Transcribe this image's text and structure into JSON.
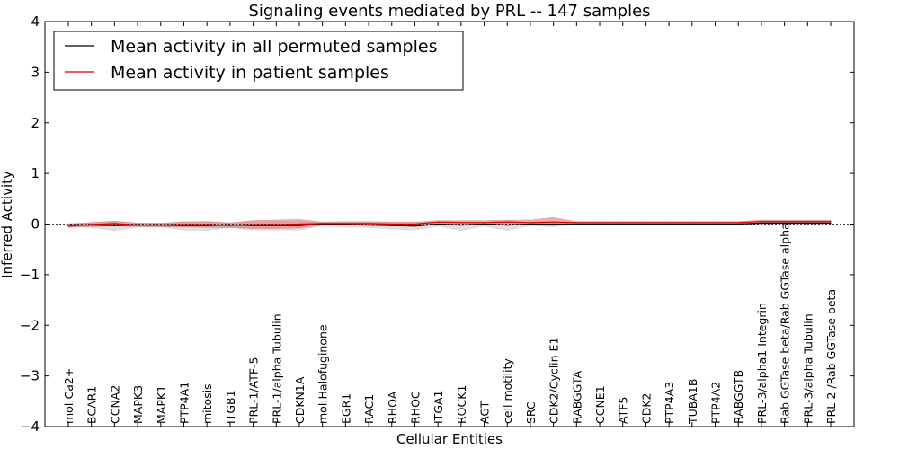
{
  "chart_data": {
    "type": "line",
    "title": "Signaling events mediated by PRL -- 147 samples",
    "xlabel": "Cellular Entities",
    "ylabel": "Inferred Activity",
    "ylim": [
      -4,
      4
    ],
    "yticks": [
      4,
      3,
      2,
      1,
      0,
      -1,
      -2,
      -3,
      -4
    ],
    "ytick_labels": [
      "4",
      "3",
      "2",
      "1",
      "0",
      "−1",
      "−2",
      "−3",
      "−4"
    ],
    "legend_position": "top-left",
    "categories": [
      "mol:Ca2+",
      "BCAR1",
      "CCNA2",
      "MAPK3",
      "MAPK1",
      "PTP4A1",
      "mitosis",
      "ITGB1",
      "PRL-1/ATF-5",
      "PRL-1/alpha Tubulin",
      "CDKN1A",
      "mol:Halofuginone",
      "EGR1",
      "RAC1",
      "RHOA",
      "RHOC",
      "ITGA1",
      "ROCK1",
      "AGT",
      "cell motility",
      "SRC",
      "CDK2/Cyclin E1",
      "RABGGTA",
      "CCNE1",
      "ATF5",
      "CDK2",
      "PTP4A3",
      "TUBA1B",
      "PTP4A2",
      "RABGGTB",
      "PRL-3/alpha1 Integrin",
      "Rab GGTase beta/Rab GGTase alpha",
      "PRL-3/alpha Tubulin",
      "PRL-2 /Rab GGTase beta"
    ],
    "series": [
      {
        "name": "Mean activity in all permuted samples",
        "color": "#000000",
        "band_color": "#bbbbbb",
        "values": [
          -0.02,
          -0.02,
          -0.03,
          -0.02,
          -0.02,
          -0.03,
          -0.03,
          -0.02,
          -0.03,
          -0.03,
          -0.03,
          0.0,
          -0.01,
          -0.02,
          -0.03,
          -0.04,
          0.0,
          -0.02,
          0.0,
          -0.02,
          0.0,
          0.0,
          0.0,
          0.0,
          0.0,
          0.0,
          0.0,
          0.0,
          0.0,
          0.0,
          0.02,
          0.02,
          0.02,
          0.02
        ],
        "lower": [
          -0.05,
          -0.07,
          -0.13,
          -0.06,
          -0.05,
          -0.12,
          -0.13,
          -0.07,
          -0.12,
          -0.12,
          -0.12,
          -0.03,
          -0.06,
          -0.07,
          -0.1,
          -0.12,
          -0.04,
          -0.13,
          -0.04,
          -0.13,
          -0.03,
          -0.05,
          -0.01,
          -0.01,
          -0.01,
          -0.01,
          -0.01,
          -0.01,
          -0.01,
          -0.01,
          0.0,
          0.0,
          0.0,
          0.0
        ],
        "upper": [
          0.01,
          0.03,
          0.05,
          0.02,
          0.01,
          0.05,
          0.05,
          0.03,
          0.05,
          0.05,
          0.05,
          0.03,
          0.04,
          0.03,
          0.03,
          0.03,
          0.04,
          0.05,
          0.04,
          0.06,
          0.04,
          0.05,
          0.01,
          0.01,
          0.01,
          0.01,
          0.01,
          0.01,
          0.01,
          0.01,
          0.03,
          0.04,
          0.04,
          0.04
        ]
      },
      {
        "name": "Mean activity in patient samples",
        "color": "#cc0000",
        "band_color": "#e06060",
        "values": [
          -0.04,
          -0.01,
          0.01,
          -0.02,
          -0.02,
          -0.01,
          -0.01,
          -0.03,
          -0.01,
          -0.01,
          0.0,
          0.01,
          0.01,
          0.01,
          0.0,
          0.0,
          0.04,
          0.03,
          0.03,
          0.04,
          0.03,
          0.04,
          0.03,
          0.03,
          0.03,
          0.03,
          0.03,
          0.03,
          0.03,
          0.03,
          0.05,
          0.05,
          0.05,
          0.05
        ],
        "lower": [
          -0.07,
          -0.05,
          -0.04,
          -0.05,
          -0.06,
          -0.06,
          -0.07,
          -0.07,
          -0.09,
          -0.09,
          -0.08,
          -0.02,
          -0.02,
          -0.02,
          -0.02,
          -0.02,
          0.0,
          -0.02,
          -0.01,
          -0.01,
          -0.02,
          -0.03,
          0.01,
          0.01,
          0.01,
          0.01,
          0.01,
          0.01,
          0.01,
          0.01,
          0.02,
          0.02,
          0.02,
          0.02
        ],
        "upper": [
          0.0,
          0.03,
          0.06,
          0.02,
          0.02,
          0.04,
          0.05,
          0.02,
          0.07,
          0.08,
          0.09,
          0.04,
          0.05,
          0.05,
          0.04,
          0.04,
          0.07,
          0.07,
          0.07,
          0.08,
          0.08,
          0.13,
          0.05,
          0.05,
          0.05,
          0.05,
          0.05,
          0.05,
          0.05,
          0.05,
          0.08,
          0.08,
          0.08,
          0.08
        ]
      }
    ]
  }
}
